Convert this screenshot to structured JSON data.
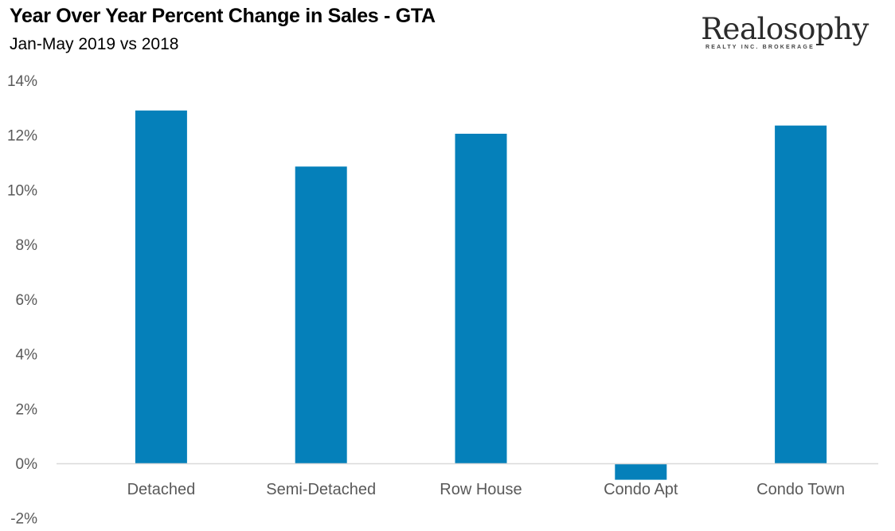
{
  "header": {
    "title": "Year Over Year Percent Change in Sales - GTA",
    "subtitle": "Jan-May 2019 vs 2018"
  },
  "logo": {
    "name": "Realosophy",
    "tagline": "REALTY INC. BROKERAGE"
  },
  "colors": {
    "bar": "#0580BA",
    "axis": "#D9D9D9",
    "tick_text": "#595959"
  },
  "chart_data": {
    "type": "bar",
    "title": "Year Over Year Percent Change in Sales - GTA",
    "subtitle": "Jan-May 2019 vs 2018",
    "xlabel": "",
    "ylabel": "",
    "categories": [
      "Detached",
      "Semi-Detached",
      "Row House",
      "Condo Apt",
      "Condo Town"
    ],
    "values": [
      12.9,
      10.85,
      12.05,
      -0.6,
      12.35
    ],
    "unit": "%",
    "ylim": [
      -2,
      14
    ],
    "yticks": [
      -2,
      0,
      2,
      4,
      6,
      8,
      10,
      12,
      14
    ],
    "ytick_labels": [
      "-2%",
      "0%",
      "2%",
      "4%",
      "6%",
      "8%",
      "10%",
      "12%",
      "14%"
    ],
    "grid": false,
    "legend": "none"
  }
}
